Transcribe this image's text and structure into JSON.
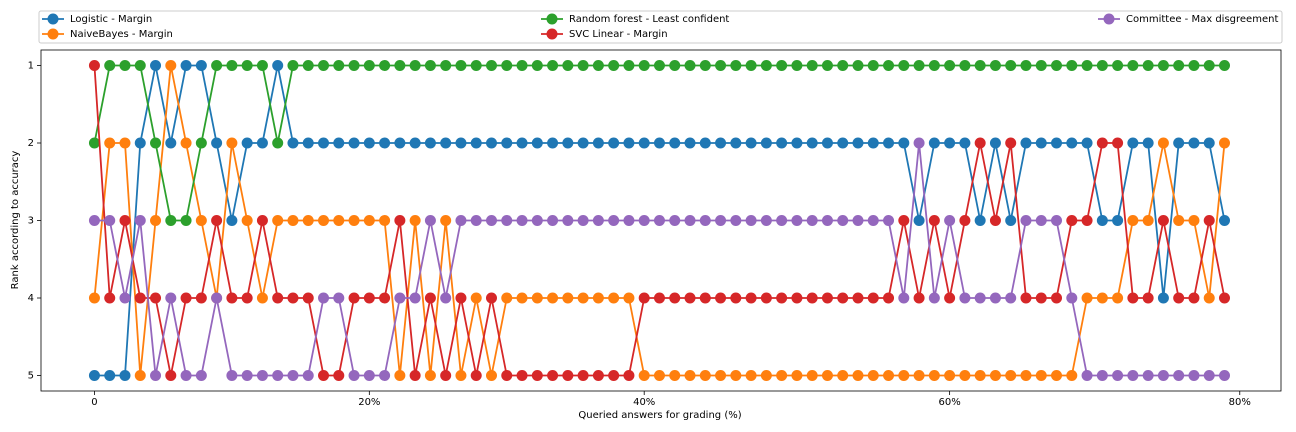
{
  "chart_data": {
    "type": "line",
    "xlabel": "Queried answers for grading (%)",
    "ylabel": "Rank according to accuracy",
    "x": [
      0,
      1,
      2,
      3,
      4,
      5,
      6,
      7,
      8,
      9,
      10,
      11,
      12,
      13,
      14,
      15,
      16,
      17,
      18,
      19,
      20,
      21,
      22,
      23,
      24,
      25,
      26,
      27,
      28,
      29,
      30,
      31,
      32,
      33,
      34,
      35,
      36,
      37,
      38,
      39,
      40,
      41,
      42,
      43,
      44,
      45,
      46,
      47,
      48,
      49,
      50,
      51,
      52,
      53,
      54,
      55,
      56,
      57,
      58,
      59,
      60,
      61,
      62,
      63,
      64,
      65,
      66,
      67,
      68,
      69,
      70,
      71,
      72,
      73,
      74
    ],
    "xlim": [
      -3.5,
      77.7
    ],
    "xticks": [
      {
        "value": 0,
        "label": "0"
      },
      {
        "value": 18,
        "label": "20%"
      },
      {
        "value": 36,
        "label": "40%"
      },
      {
        "value": 56,
        "label": "60%"
      },
      {
        "value": 75,
        "label": "80%"
      }
    ],
    "ylim": [
      5.2,
      0.8
    ],
    "yticks": [
      1,
      2,
      3,
      4,
      5
    ],
    "legend": "top",
    "series": [
      {
        "name": "Logistic - Margin",
        "color": "#1f77b4",
        "values": [
          5,
          5,
          5,
          2,
          1,
          2,
          1,
          1,
          2,
          3,
          2,
          2,
          1,
          2,
          2,
          2,
          2,
          2,
          2,
          2,
          2,
          2,
          2,
          2,
          2,
          2,
          2,
          2,
          2,
          2,
          2,
          2,
          2,
          2,
          2,
          2,
          2,
          2,
          2,
          2,
          2,
          2,
          2,
          2,
          2,
          2,
          2,
          2,
          2,
          2,
          2,
          2,
          2,
          2,
          3,
          2,
          2,
          2,
          3,
          2,
          3,
          2,
          2,
          2,
          2,
          2,
          3,
          3,
          2,
          2,
          4,
          2,
          2,
          2,
          3
        ]
      },
      {
        "name": "NaiveBayes - Margin",
        "color": "#ff7f0e",
        "values": [
          4,
          2,
          2,
          5,
          3,
          1,
          2,
          3,
          4,
          2,
          3,
          4,
          3,
          3,
          3,
          3,
          3,
          3,
          3,
          3,
          5,
          3,
          5,
          3,
          5,
          4,
          5,
          4,
          4,
          4,
          4,
          4,
          4,
          4,
          4,
          4,
          5,
          5,
          5,
          5,
          5,
          5,
          5,
          5,
          5,
          5,
          5,
          5,
          5,
          5,
          5,
          5,
          5,
          5,
          5,
          5,
          5,
          5,
          5,
          5,
          5,
          5,
          5,
          5,
          5,
          4,
          4,
          4,
          3,
          3,
          2,
          3,
          3,
          4,
          2
        ]
      },
      {
        "name": "Random forest - Least confident",
        "color": "#2ca02c",
        "values": [
          2,
          1,
          1,
          1,
          2,
          3,
          3,
          2,
          1,
          1,
          1,
          1,
          2,
          1,
          1,
          1,
          1,
          1,
          1,
          1,
          1,
          1,
          1,
          1,
          1,
          1,
          1,
          1,
          1,
          1,
          1,
          1,
          1,
          1,
          1,
          1,
          1,
          1,
          1,
          1,
          1,
          1,
          1,
          1,
          1,
          1,
          1,
          1,
          1,
          1,
          1,
          1,
          1,
          1,
          1,
          1,
          1,
          1,
          1,
          1,
          1,
          1,
          1,
          1,
          1,
          1,
          1,
          1,
          1,
          1,
          1,
          1,
          1,
          1,
          1
        ]
      },
      {
        "name": "SVC Linear - Margin",
        "color": "#d62728",
        "values": [
          1,
          4,
          3,
          4,
          4,
          5,
          4,
          4,
          3,
          4,
          4,
          3,
          4,
          4,
          4,
          5,
          5,
          4,
          4,
          4,
          3,
          5,
          4,
          5,
          4,
          5,
          4,
          5,
          5,
          5,
          5,
          5,
          5,
          5,
          5,
          5,
          4,
          4,
          4,
          4,
          4,
          4,
          4,
          4,
          4,
          4,
          4,
          4,
          4,
          4,
          4,
          4,
          4,
          3,
          4,
          3,
          4,
          3,
          2,
          3,
          2,
          4,
          4,
          4,
          3,
          3,
          2,
          2,
          4,
          4,
          3,
          4,
          4,
          3,
          4
        ]
      },
      {
        "name": "Committee - Max disgreement",
        "color": "#9467bd",
        "values": [
          3,
          3,
          4,
          3,
          5,
          4,
          5,
          5,
          4,
          5,
          5,
          5,
          5,
          5,
          5,
          4,
          4,
          5,
          5,
          5,
          4,
          4,
          3,
          4,
          3,
          3,
          3,
          3,
          3,
          3,
          3,
          3,
          3,
          3,
          3,
          3,
          3,
          3,
          3,
          3,
          3,
          3,
          3,
          3,
          3,
          3,
          3,
          3,
          3,
          3,
          3,
          3,
          3,
          4,
          2,
          4,
          3,
          4,
          4,
          4,
          4,
          3,
          3,
          3,
          4,
          5,
          5,
          5,
          5,
          5,
          5,
          5,
          5,
          5,
          5
        ]
      }
    ]
  }
}
